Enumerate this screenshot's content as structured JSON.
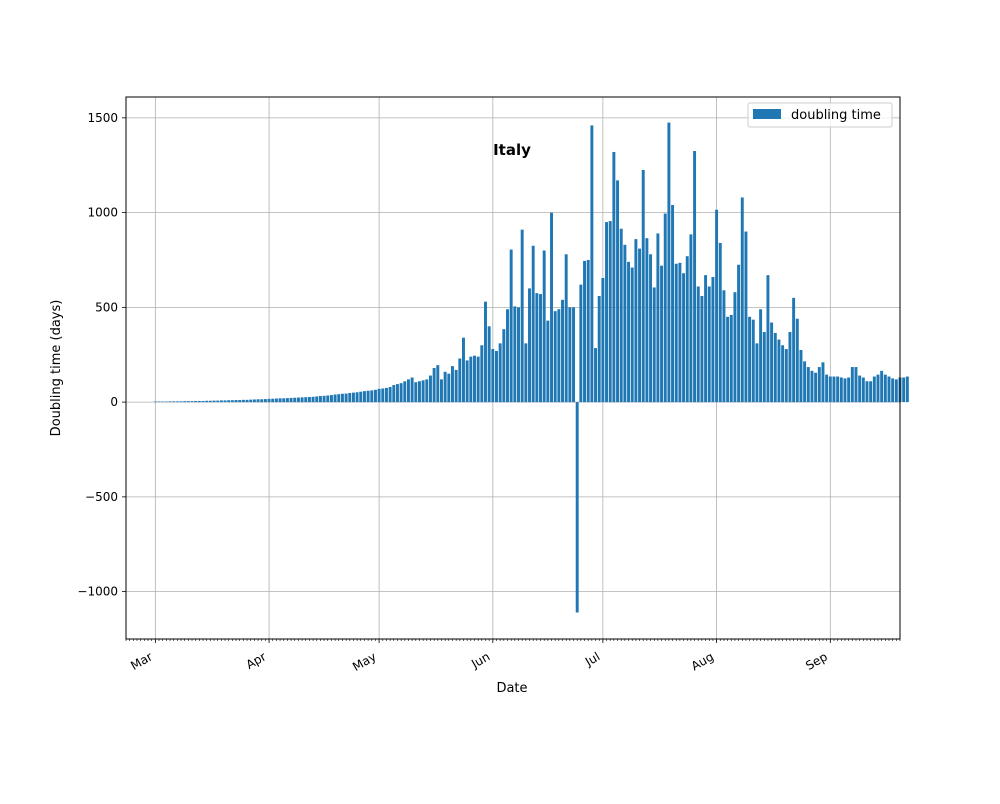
{
  "chart_data": {
    "type": "bar",
    "title": "Italy",
    "xlabel": "Date",
    "ylabel": "Doubling time (days)",
    "x_axis_type": "date",
    "xlim": [
      "2020-02-22",
      "2020-09-20"
    ],
    "ylim": [
      -1250,
      1610
    ],
    "x_ticks": [
      {
        "date": "2020-03-01",
        "label": "Mar"
      },
      {
        "date": "2020-04-01",
        "label": "Apr"
      },
      {
        "date": "2020-05-01",
        "label": "May"
      },
      {
        "date": "2020-06-01",
        "label": "Jun"
      },
      {
        "date": "2020-07-01",
        "label": "Jul"
      },
      {
        "date": "2020-08-01",
        "label": "Aug"
      },
      {
        "date": "2020-09-01",
        "label": "Sep"
      }
    ],
    "y_ticks": [
      {
        "value": 1500,
        "label": "1500"
      },
      {
        "value": 1000,
        "label": "1000"
      },
      {
        "value": 500,
        "label": "500"
      },
      {
        "value": 0,
        "label": "0"
      },
      {
        "value": -500,
        "label": "−500"
      },
      {
        "value": -1000,
        "label": "−1000"
      }
    ],
    "grid": true,
    "legend_position": "top-right",
    "start_date": "2020-03-01",
    "series": [
      {
        "name": "doubling time",
        "color": "#1f77b4",
        "values": [
          3,
          3,
          3,
          3,
          4,
          4,
          4,
          4,
          5,
          5,
          5,
          6,
          6,
          6,
          7,
          7,
          8,
          8,
          9,
          9,
          10,
          10,
          11,
          11,
          12,
          12,
          13,
          14,
          15,
          15,
          16,
          17,
          18,
          19,
          20,
          20,
          21,
          22,
          23,
          24,
          25,
          26,
          27,
          28,
          30,
          32,
          33,
          35,
          37,
          40,
          42,
          44,
          45,
          48,
          50,
          52,
          55,
          58,
          60,
          62,
          65,
          70,
          72,
          75,
          80,
          90,
          95,
          100,
          110,
          120,
          130,
          105,
          110,
          115,
          120,
          140,
          180,
          195,
          120,
          160,
          150,
          190,
          170,
          230,
          340,
          220,
          240,
          245,
          240,
          300,
          530,
          400,
          280,
          270,
          310,
          385,
          490,
          805,
          505,
          500,
          910,
          310,
          600,
          825,
          575,
          570,
          800,
          430,
          1000,
          480,
          490,
          540,
          780,
          500,
          500,
          -1110,
          620,
          745,
          750,
          1460,
          285,
          560,
          655,
          950,
          955,
          1320,
          1170,
          915,
          830,
          740,
          710,
          860,
          810,
          1225,
          865,
          780,
          605,
          890,
          720,
          995,
          1475,
          1040,
          730,
          735,
          680,
          770,
          885,
          1325,
          610,
          560,
          670,
          610,
          660,
          1015,
          840,
          590,
          450,
          460,
          580,
          725,
          1080,
          900,
          450,
          435,
          310,
          490,
          370,
          670,
          420,
          365,
          330,
          300,
          280,
          370,
          550,
          440,
          275,
          215,
          185,
          165,
          155,
          185,
          210,
          145,
          135,
          135,
          135,
          130,
          125,
          130,
          185,
          185,
          140,
          130,
          110,
          110,
          135,
          145,
          165,
          145,
          135,
          125,
          120,
          130,
          130,
          135
        ]
      }
    ]
  }
}
